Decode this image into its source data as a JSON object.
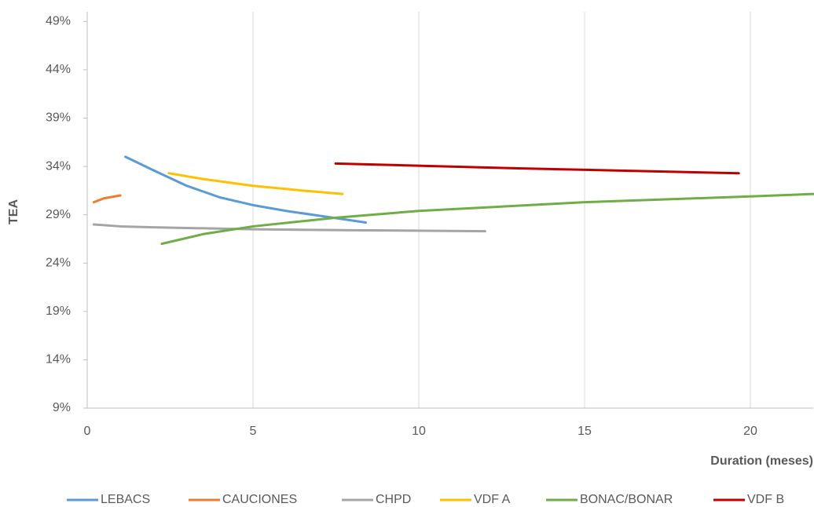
{
  "chart_data": {
    "type": "line",
    "x_label": "Duration (meses)",
    "y_label": "TEA",
    "xlim": [
      0,
      21.9
    ],
    "xticks": [
      0,
      5,
      10,
      15,
      20
    ],
    "ylim": [
      9,
      50
    ],
    "yticks": [
      {
        "value": 9,
        "label": "9%"
      },
      {
        "value": 14,
        "label": "14%"
      },
      {
        "value": 19,
        "label": "19%"
      },
      {
        "value": 24,
        "label": "24%"
      },
      {
        "value": 29,
        "label": "29%"
      },
      {
        "value": 34,
        "label": "34%"
      },
      {
        "value": 39,
        "label": "39%"
      },
      {
        "value": 44,
        "label": "44%"
      },
      {
        "value": 49,
        "label": "49%"
      }
    ],
    "grid": "x",
    "legend": "bottom",
    "series": [
      {
        "name": "LEBACS",
        "color": "#5b9bd5",
        "x": [
          1.15,
          2,
          3,
          4,
          5,
          6,
          7,
          8.4
        ],
        "values": [
          35.0,
          33.6,
          32.0,
          30.8,
          30.0,
          29.4,
          28.9,
          28.2
        ]
      },
      {
        "name": "CAUCIONES",
        "color": "#ed7d31",
        "x": [
          0.2,
          0.5,
          1.0
        ],
        "values": [
          30.3,
          30.7,
          31.0
        ]
      },
      {
        "name": "CHPD",
        "color": "#a5a5a5",
        "x": [
          0.2,
          1,
          2,
          5,
          8,
          12
        ],
        "values": [
          28.0,
          27.8,
          27.7,
          27.5,
          27.4,
          27.3
        ]
      },
      {
        "name": "VDF A",
        "color": "#ffc000",
        "x": [
          2.46,
          3.5,
          5,
          6.5,
          7.7
        ],
        "values": [
          33.3,
          32.7,
          32.0,
          31.5,
          31.15
        ]
      },
      {
        "name": "BONAC/BONAR",
        "color": "#70ad47",
        "x": [
          2.25,
          3.5,
          5,
          7.5,
          10,
          15,
          20,
          21.9
        ],
        "values": [
          26.0,
          27.0,
          27.8,
          28.7,
          29.4,
          30.3,
          30.9,
          31.15
        ]
      },
      {
        "name": "VDF B",
        "color": "#c00000",
        "x": [
          7.49,
          13,
          19.65
        ],
        "values": [
          34.3,
          33.8,
          33.3
        ]
      }
    ]
  }
}
